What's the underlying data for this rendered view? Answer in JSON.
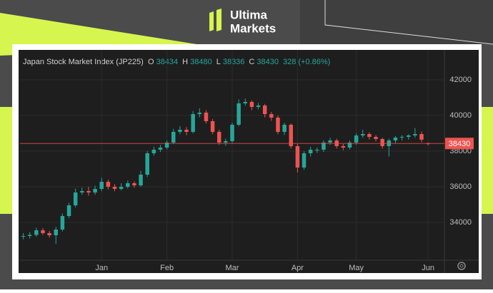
{
  "brand": [
    "Ultima",
    "Markets"
  ],
  "chart_data": {
    "type": "candlestick",
    "title": "Japan Stock Market Index (JP225)",
    "ohlc_labels": [
      "O",
      "H",
      "L",
      "C"
    ],
    "change": "328 (+0.86%)",
    "up_color": "#26a69a",
    "down_color": "#ef5350",
    "open": [
      33200,
      33240,
      33300,
      33560,
      33400,
      33280,
      33600,
      34360,
      34960,
      35680,
      35760,
      35680,
      35880,
      36280,
      36000,
      35880,
      36000,
      36200,
      36080,
      36680,
      37880,
      38080,
      38200,
      38480,
      39080,
      39200,
      39080,
      40080,
      40160,
      39680,
      39080,
      38480,
      38560,
      39480,
      40680,
      40760,
      40480,
      40560,
      40080,
      39880,
      39080,
      39480,
      38280,
      37080,
      37880,
      38080,
      38080,
      38480,
      38600,
      38280,
      38200,
      38480,
      38880,
      38960,
      38800,
      38680,
      38280,
      38600,
      38760,
      38800,
      38880,
      38960,
      38434
    ],
    "high": [
      33400,
      33450,
      33700,
      33680,
      33520,
      33750,
      34500,
      35100,
      35900,
      35950,
      36000,
      36050,
      36500,
      36400,
      36150,
      36200,
      36350,
      36300,
      36900,
      38000,
      38250,
      38350,
      38600,
      39250,
      39400,
      39350,
      40250,
      40400,
      40300,
      39800,
      39200,
      38700,
      39600,
      40900,
      40950,
      40850,
      40700,
      40650,
      40200,
      40000,
      39600,
      39550,
      38400,
      38000,
      38250,
      38200,
      38600,
      38750,
      38700,
      38400,
      38600,
      39000,
      39200,
      39050,
      38900,
      38750,
      38700,
      38850,
      38900,
      38950,
      39300,
      39100,
      38480
    ],
    "low": [
      33050,
      33100,
      33200,
      33300,
      33150,
      32800,
      33500,
      34250,
      34850,
      35550,
      35500,
      35550,
      35750,
      35850,
      35750,
      35800,
      35900,
      35950,
      36000,
      36550,
      37750,
      37950,
      38100,
      38400,
      38950,
      38900,
      39000,
      39900,
      39550,
      38950,
      38350,
      38300,
      38450,
      39400,
      40550,
      40300,
      40350,
      39900,
      39700,
      38950,
      38900,
      38150,
      36800,
      36950,
      37700,
      37900,
      37950,
      38350,
      38150,
      38050,
      38100,
      38350,
      38750,
      38650,
      38550,
      38150,
      37700,
      38450,
      38600,
      38650,
      38750,
      38500,
      38336
    ],
    "close": [
      33240,
      33300,
      33560,
      33400,
      33280,
      33600,
      34360,
      34960,
      35680,
      35760,
      35680,
      35880,
      36280,
      36000,
      35880,
      36000,
      36200,
      36080,
      36680,
      37880,
      38080,
      38200,
      38480,
      39080,
      39200,
      39080,
      40080,
      40160,
      39680,
      39080,
      38480,
      38560,
      39480,
      40680,
      40760,
      40480,
      40560,
      40080,
      39880,
      39080,
      39480,
      38280,
      37080,
      37880,
      38080,
      38080,
      38480,
      38600,
      38280,
      38200,
      38480,
      38880,
      38960,
      38800,
      38680,
      38280,
      38600,
      38760,
      38800,
      38880,
      38960,
      38640,
      38430
    ],
    "xlim": [
      -0.5,
      64.5
    ],
    "xticks": [
      {
        "value": 12,
        "label": "Jan"
      },
      {
        "value": 22,
        "label": "Feb"
      },
      {
        "value": 32,
        "label": "Mar"
      },
      {
        "value": 42,
        "label": "Apr"
      },
      {
        "value": 51,
        "label": "May"
      },
      {
        "value": 62,
        "label": "Jun"
      }
    ],
    "ylim": [
      32000,
      43600
    ],
    "yticks": [
      34000,
      36000,
      38000,
      40000,
      42000
    ],
    "grid": true
  }
}
